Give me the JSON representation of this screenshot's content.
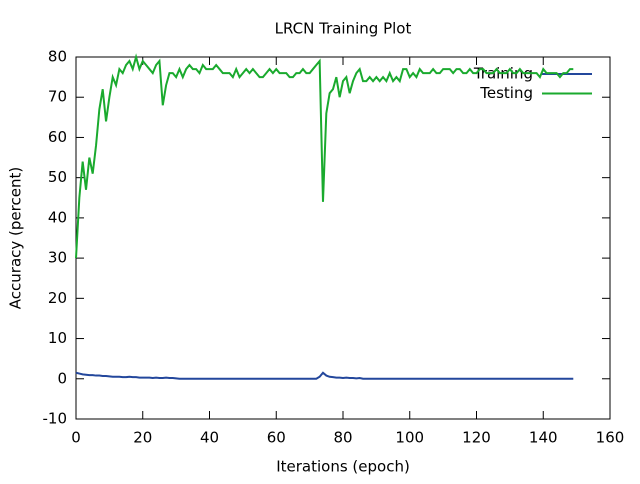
{
  "chart_data": {
    "type": "line",
    "title": "LRCN Training Plot",
    "x_label": "Iterations (epoch)",
    "y_label": "Accuracy (percent)",
    "x": [
      0,
      1,
      2,
      3,
      4,
      5,
      6,
      7,
      8,
      9,
      10,
      11,
      12,
      13,
      14,
      15,
      16,
      17,
      18,
      19,
      20,
      21,
      22,
      23,
      24,
      25,
      26,
      27,
      28,
      29,
      30,
      31,
      32,
      33,
      34,
      35,
      36,
      37,
      38,
      39,
      40,
      41,
      42,
      43,
      44,
      45,
      46,
      47,
      48,
      49,
      50,
      51,
      52,
      53,
      54,
      55,
      56,
      57,
      58,
      59,
      60,
      61,
      62,
      63,
      64,
      65,
      66,
      67,
      68,
      69,
      70,
      71,
      72,
      73,
      74,
      75,
      76,
      77,
      78,
      79,
      80,
      81,
      82,
      83,
      84,
      85,
      86,
      87,
      88,
      89,
      90,
      91,
      92,
      93,
      94,
      95,
      96,
      97,
      98,
      99,
      100,
      101,
      102,
      103,
      104,
      105,
      106,
      107,
      108,
      109,
      110,
      111,
      112,
      113,
      114,
      115,
      116,
      117,
      118,
      119,
      120,
      121,
      122,
      123,
      124,
      125,
      126,
      127,
      128,
      129,
      130,
      131,
      132,
      133,
      134,
      135,
      136,
      137,
      138,
      139,
      140,
      141,
      142,
      143,
      144,
      145,
      146,
      147,
      148,
      149
    ],
    "series": [
      {
        "name": "Training",
        "color": "#23479c",
        "values": [
          1.5,
          1.3,
          1.1,
          1.0,
          0.9,
          0.9,
          0.8,
          0.8,
          0.7,
          0.7,
          0.6,
          0.5,
          0.5,
          0.5,
          0.4,
          0.4,
          0.5,
          0.4,
          0.4,
          0.3,
          0.3,
          0.3,
          0.3,
          0.2,
          0.3,
          0.2,
          0.2,
          0.3,
          0.2,
          0.2,
          0.1,
          0,
          0,
          0,
          0,
          0,
          0,
          0,
          0,
          0,
          0,
          0,
          0,
          0,
          0,
          0,
          0,
          0,
          0,
          0,
          0,
          0,
          0,
          0,
          0,
          0,
          0,
          0,
          0,
          0,
          0,
          0,
          0,
          0,
          0,
          0,
          0,
          0,
          0,
          0,
          0,
          0,
          0,
          0.5,
          1.5,
          0.8,
          0.5,
          0.4,
          0.3,
          0.3,
          0.2,
          0.3,
          0.2,
          0.2,
          0.1,
          0.2,
          0,
          0,
          0,
          0,
          0,
          0,
          0,
          0,
          0,
          0,
          0,
          0,
          0,
          0,
          0,
          0,
          0,
          0,
          0,
          0,
          0,
          0,
          0,
          0,
          0,
          0,
          0,
          0,
          0,
          0,
          0,
          0,
          0,
          0,
          0,
          0,
          0,
          0,
          0,
          0,
          0,
          0,
          0,
          0,
          0,
          0,
          0,
          0,
          0,
          0,
          0,
          0,
          0,
          0,
          0,
          0,
          0,
          0,
          0,
          0,
          0,
          0,
          0,
          0
        ]
      },
      {
        "name": "Testing",
        "color": "#1aaa2e",
        "values": [
          30,
          45,
          54,
          47,
          55,
          51,
          58,
          67,
          72,
          64,
          70,
          75,
          73,
          77,
          76,
          78,
          79,
          77,
          80,
          77,
          79,
          78,
          77,
          76,
          78,
          79,
          68,
          73,
          76,
          76,
          75,
          77,
          75,
          77,
          78,
          77,
          77,
          76,
          78,
          77,
          77,
          77,
          78,
          77,
          76,
          76,
          76,
          75,
          77,
          75,
          76,
          77,
          76,
          77,
          76,
          75,
          75,
          76,
          77,
          76,
          77,
          76,
          76,
          76,
          75,
          75,
          76,
          76,
          77,
          76,
          76,
          77,
          78,
          79,
          44,
          66,
          71,
          72,
          75,
          70,
          74,
          75,
          71,
          74,
          76,
          77,
          74,
          74,
          75,
          74,
          75,
          74,
          75,
          74,
          76,
          74,
          75,
          74,
          77,
          77,
          75,
          76,
          75,
          77,
          76,
          76,
          76,
          77,
          76,
          76,
          77,
          77,
          77,
          76,
          77,
          77,
          76,
          76,
          77,
          76,
          76,
          77,
          77,
          76,
          76,
          76,
          77,
          76,
          76,
          76,
          77,
          76,
          76,
          77,
          76,
          76,
          76,
          76,
          76,
          75,
          77,
          76,
          76,
          76,
          76,
          75,
          76,
          76,
          77,
          77
        ]
      }
    ],
    "xlim": [
      0,
      160
    ],
    "xticks": [
      0,
      20,
      40,
      60,
      80,
      100,
      120,
      140,
      160
    ],
    "ylim": [
      -10,
      80
    ],
    "yticks": [
      -10,
      0,
      10,
      20,
      30,
      40,
      50,
      60,
      70,
      80
    ],
    "grid": false,
    "legend": "top-right"
  }
}
